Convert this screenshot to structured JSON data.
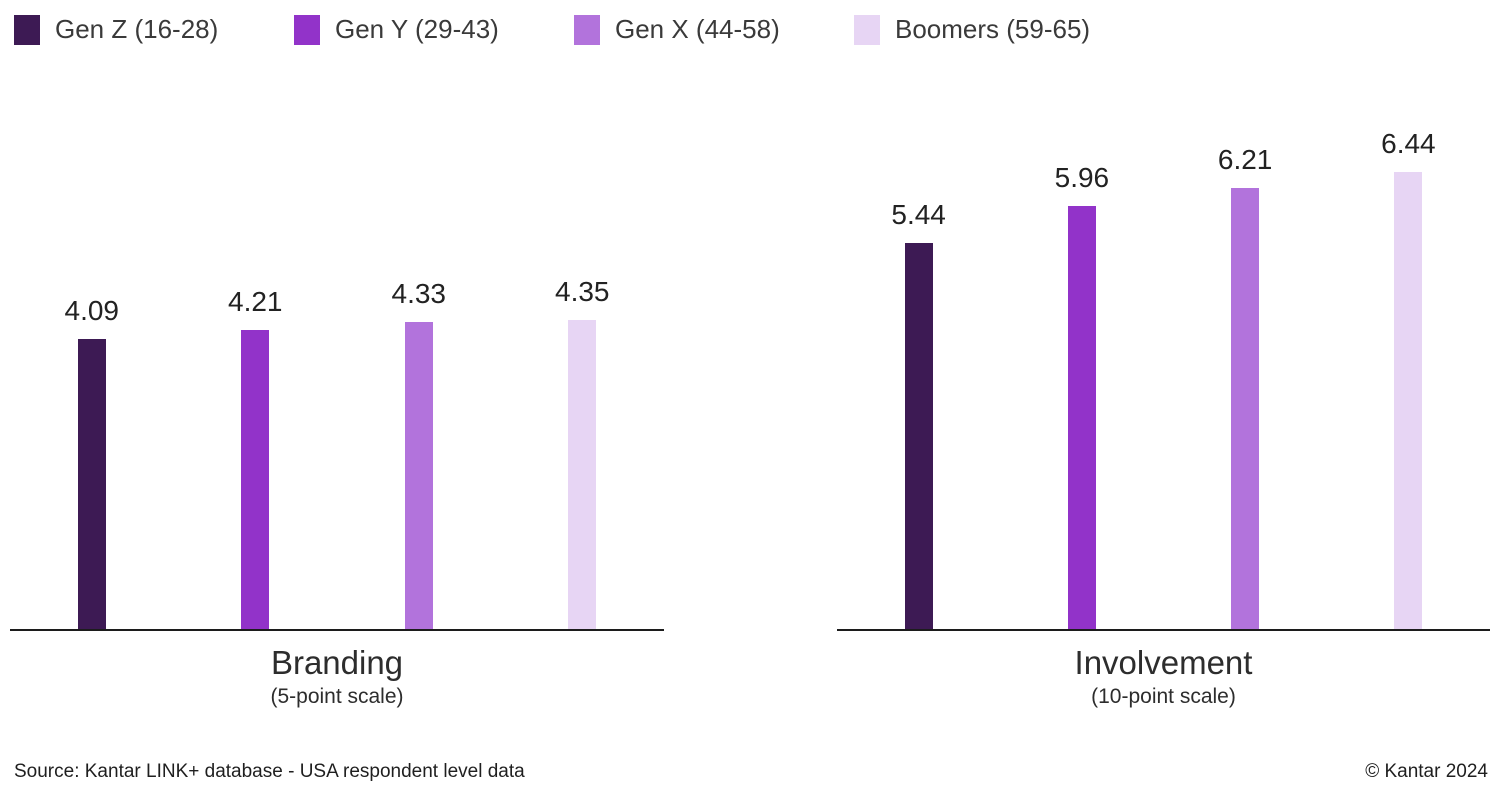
{
  "palette": {
    "gen_z": "#3D1A54",
    "gen_y": "#9233C9",
    "gen_x": "#B273DC",
    "boomers": "#E7D5F4",
    "axis": "#1c1c1c"
  },
  "legend": {
    "items": [
      {
        "label": "Gen Z (16-28)",
        "color": "#3D1A54"
      },
      {
        "label": "Gen Y (29-43)",
        "color": "#9233C9"
      },
      {
        "label": "Gen X (44-58)",
        "color": "#B273DC"
      },
      {
        "label": "Boomers (59-65)",
        "color": "#E7D5F4"
      }
    ]
  },
  "chart_data": [
    {
      "type": "bar",
      "title": "Branding",
      "subtitle": "(5-point scale)",
      "categories": [
        "Gen Z (16-28)",
        "Gen Y (29-43)",
        "Gen X (44-58)",
        "Boomers (59-65)"
      ],
      "values": [
        4.09,
        4.21,
        4.33,
        4.35
      ],
      "colors": [
        "#3D1A54",
        "#9233C9",
        "#B273DC",
        "#E7D5F4"
      ],
      "ylim": [
        0,
        6.5
      ],
      "grid": false,
      "data_labels": true,
      "legend_position": "top"
    },
    {
      "type": "bar",
      "title": "Involvement",
      "subtitle": "(10-point scale)",
      "categories": [
        "Gen Z (16-28)",
        "Gen Y (29-43)",
        "Gen X (44-58)",
        "Boomers (59-65)"
      ],
      "values": [
        5.44,
        5.96,
        6.21,
        6.44
      ],
      "colors": [
        "#3D1A54",
        "#9233C9",
        "#B273DC",
        "#E7D5F4"
      ],
      "ylim": [
        0,
        6.5
      ],
      "grid": false,
      "data_labels": true,
      "legend_position": "top"
    }
  ],
  "footer": {
    "source": "Source: Kantar LINK+ database - USA respondent level data",
    "copyright": "© Kantar 2024"
  }
}
